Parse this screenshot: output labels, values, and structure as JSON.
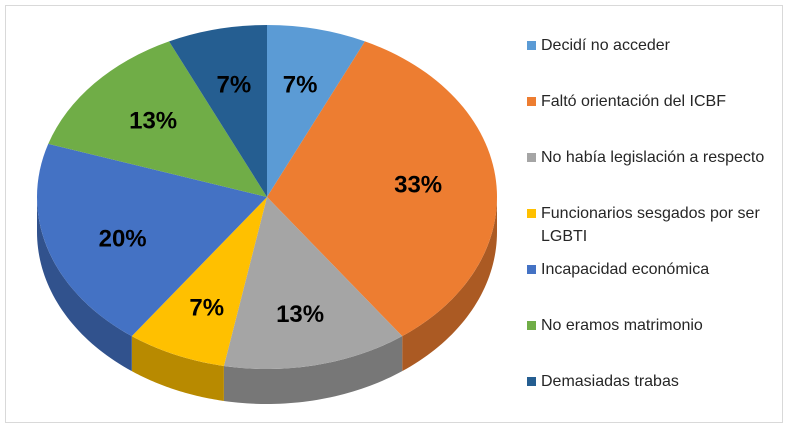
{
  "chart_data": {
    "type": "pie",
    "categories": [
      "Decidí no acceder",
      "Faltó orientación del ICBF",
      "No había legislación a respecto",
      "Funcionarios sesgados por ser LGBTI",
      "Incapacidad económica",
      "No eramos matrimonio",
      "Demasiadas trabas"
    ],
    "values": [
      7,
      33,
      13,
      7,
      20,
      13,
      7
    ],
    "value_labels": [
      "7%",
      "33%",
      "13%",
      "7%",
      "20%",
      "13%",
      "7%"
    ],
    "colors": [
      "#5b9bd5",
      "#ed7d31",
      "#a5a5a5",
      "#ffc000",
      "#4472c4",
      "#70ad47",
      "#255e91"
    ],
    "legend": "right"
  }
}
